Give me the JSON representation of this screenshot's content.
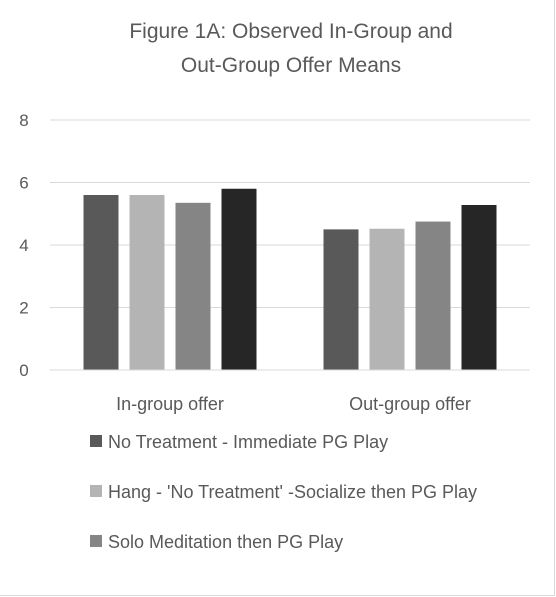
{
  "chart_data": {
    "type": "bar",
    "title_lines": [
      "Figure 1A: Observed In-Group and",
      "Out-Group Offer Means"
    ],
    "categories": [
      "In-group offer",
      "Out-group offer"
    ],
    "series": [
      {
        "name": "No Treatment - Immediate PG Play",
        "color": "#595959",
        "values": [
          5.6,
          4.5
        ]
      },
      {
        "name": "Hang - 'No Treatment' -Socialize then PG Play",
        "color": "#b4b4b4",
        "values": [
          5.6,
          4.52
        ]
      },
      {
        "name": "Solo Meditation then PG Play",
        "color": "#858585",
        "values": [
          5.35,
          4.75
        ]
      },
      {
        "name": "",
        "color": "#262626",
        "values": [
          5.8,
          5.28
        ]
      }
    ],
    "yticks": [
      "0",
      "2",
      "4",
      "6",
      "8"
    ],
    "ylim": [
      0,
      8
    ],
    "grid": true,
    "legend_position": "bottom"
  }
}
